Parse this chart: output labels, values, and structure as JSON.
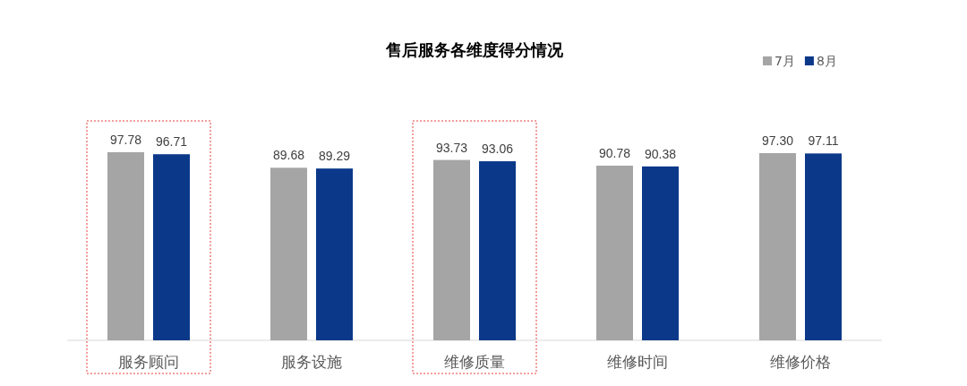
{
  "chart_data": {
    "type": "bar",
    "title": "售后服务各维度得分情况",
    "categories": [
      "服务顾问",
      "服务设施",
      "维修质量",
      "维修时间",
      "维修价格"
    ],
    "series": [
      {
        "name": "7月",
        "color": "#a5a5a5",
        "values": [
          97.78,
          89.68,
          93.73,
          90.78,
          97.3
        ],
        "value_labels": [
          "97.78",
          "89.68",
          "93.73",
          "90.78",
          "97.30"
        ]
      },
      {
        "name": "8月",
        "color": "#0b3889",
        "values": [
          96.71,
          89.29,
          93.06,
          90.38,
          97.11
        ],
        "value_labels": [
          "96.71",
          "89.29",
          "93.06",
          "90.38",
          "97.11"
        ]
      }
    ],
    "legend": "top right"
  }
}
